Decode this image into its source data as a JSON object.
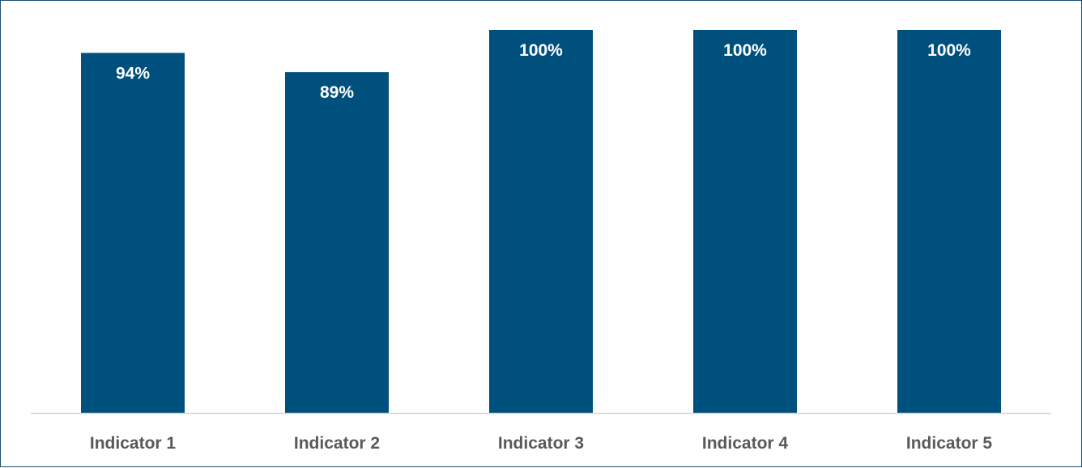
{
  "chart_data": {
    "type": "bar",
    "categories": [
      "Indicator 1",
      "Indicator 2",
      "Indicator 3",
      "Indicator 4",
      "Indicator 5"
    ],
    "values": [
      94,
      89,
      100,
      100,
      100
    ],
    "data_labels": [
      "94%",
      "89%",
      "100%",
      "100%",
      "100%"
    ],
    "title": "",
    "xlabel": "",
    "ylabel": "",
    "ylim": [
      0,
      100
    ],
    "grid": false,
    "legend": "none",
    "colors": {
      "bar": "#00507d",
      "axis": "#d9d9d9",
      "tick_text": "#595959",
      "label_text": "#ffffff",
      "border": "#1b4f72"
    }
  }
}
